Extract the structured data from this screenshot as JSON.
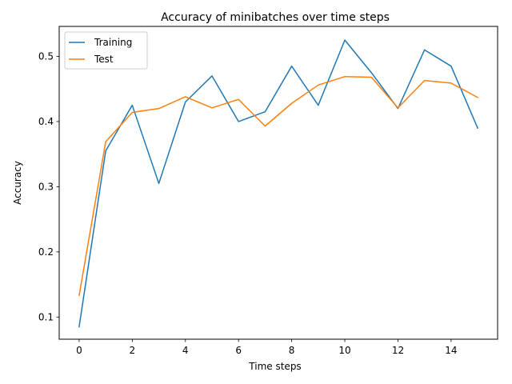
{
  "chart_data": {
    "type": "line",
    "title": "Accuracy of minibatches over time steps",
    "xlabel": "Time steps",
    "ylabel": "Accuracy",
    "xlim": [
      -0.75,
      15.75
    ],
    "ylim": [
      0.066,
      0.546
    ],
    "xticks": [
      0,
      2,
      4,
      6,
      8,
      10,
      12,
      14
    ],
    "yticks": [
      0.1,
      0.2,
      0.3,
      0.4,
      0.5
    ],
    "legend_position": "top-left",
    "grid": false,
    "x": [
      0,
      1,
      2,
      3,
      4,
      5,
      6,
      7,
      8,
      9,
      10,
      11,
      12,
      13,
      14,
      15
    ],
    "series": [
      {
        "name": "Training",
        "color": "#1f77b4",
        "values": [
          0.085,
          0.355,
          0.425,
          0.305,
          0.43,
          0.47,
          0.4,
          0.415,
          0.485,
          0.425,
          0.525,
          0.475,
          0.42,
          0.51,
          0.485,
          0.39
        ]
      },
      {
        "name": "Test",
        "color": "#ff7f0e",
        "values": [
          0.133,
          0.369,
          0.414,
          0.42,
          0.438,
          0.421,
          0.434,
          0.393,
          0.428,
          0.456,
          0.469,
          0.468,
          0.421,
          0.463,
          0.459,
          0.437
        ]
      }
    ]
  }
}
